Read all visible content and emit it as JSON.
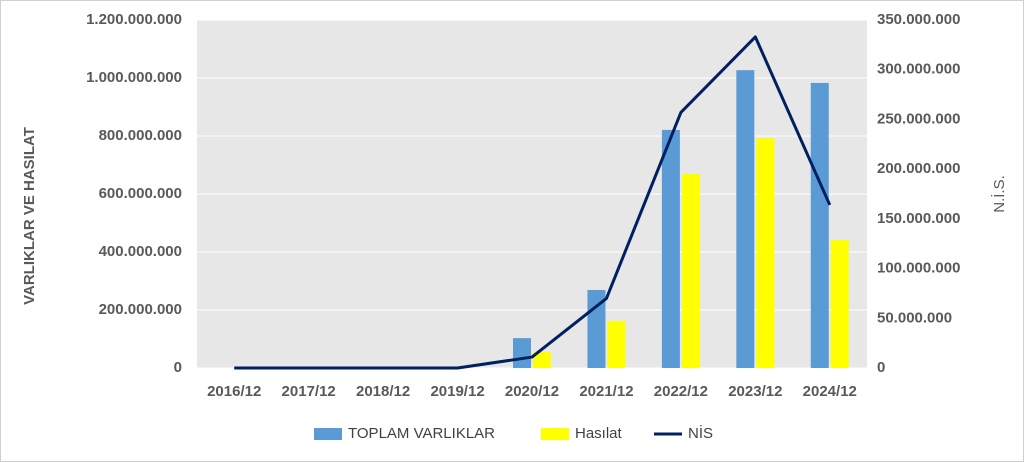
{
  "chart_data": {
    "type": "bar_line",
    "categories": [
      "2016/12",
      "2017/12",
      "2018/12",
      "2019/12",
      "2020/12",
      "2021/12",
      "2022/12",
      "2023/12",
      "2024/12"
    ],
    "series": [
      {
        "name": "TOPLAM VARLIKLAR",
        "color": "#5b9bd5",
        "kind": "bar",
        "values": [
          0,
          0,
          0,
          0,
          103000000,
          269000000,
          821000000,
          1027000000,
          983000000
        ]
      },
      {
        "name": "Hasılat",
        "color": "#ffff00",
        "kind": "bar",
        "values": [
          0,
          0,
          0,
          0,
          55000000,
          162000000,
          669000000,
          793000000,
          441000000
        ]
      },
      {
        "name": "NİS",
        "color": "#002060",
        "kind": "line",
        "axis": "y2",
        "values": [
          0,
          0,
          0,
          0,
          11000000,
          70000000,
          257000000,
          333000000,
          164000000
        ]
      }
    ],
    "ylabel": "VARLIKLAR VE HASILAT",
    "y2label": "N.İ.S.",
    "ylim": [
      0,
      1200000000
    ],
    "yticks": [
      0,
      {
        "value": 200000000,
        "label": "200.000.000"
      },
      {
        "value": 400000000,
        "label": "400.000.000"
      },
      {
        "value": 600000000,
        "label": "600.000.000"
      },
      {
        "value": 800000000,
        "label": "800.000.000"
      },
      {
        "value": 1000000000,
        "label": "1.000.000.000"
      },
      {
        "value": 1200000000,
        "label": "1.200.000.000"
      }
    ],
    "y2lim": [
      0,
      350000000
    ],
    "y2ticks": [
      0,
      {
        "value": 50000000,
        "label": "50.000.000"
      },
      {
        "value": 100000000,
        "label": "100.000.000"
      },
      {
        "value": 150000000,
        "label": "150.000.000"
      },
      {
        "value": 200000000,
        "label": "200.000.000"
      },
      {
        "value": 250000000,
        "label": "250.000.000"
      },
      {
        "value": 300000000,
        "label": "300.000.000"
      },
      {
        "value": 350000000,
        "label": "350.000.000"
      }
    ],
    "grid": true,
    "legend": "bottom"
  }
}
